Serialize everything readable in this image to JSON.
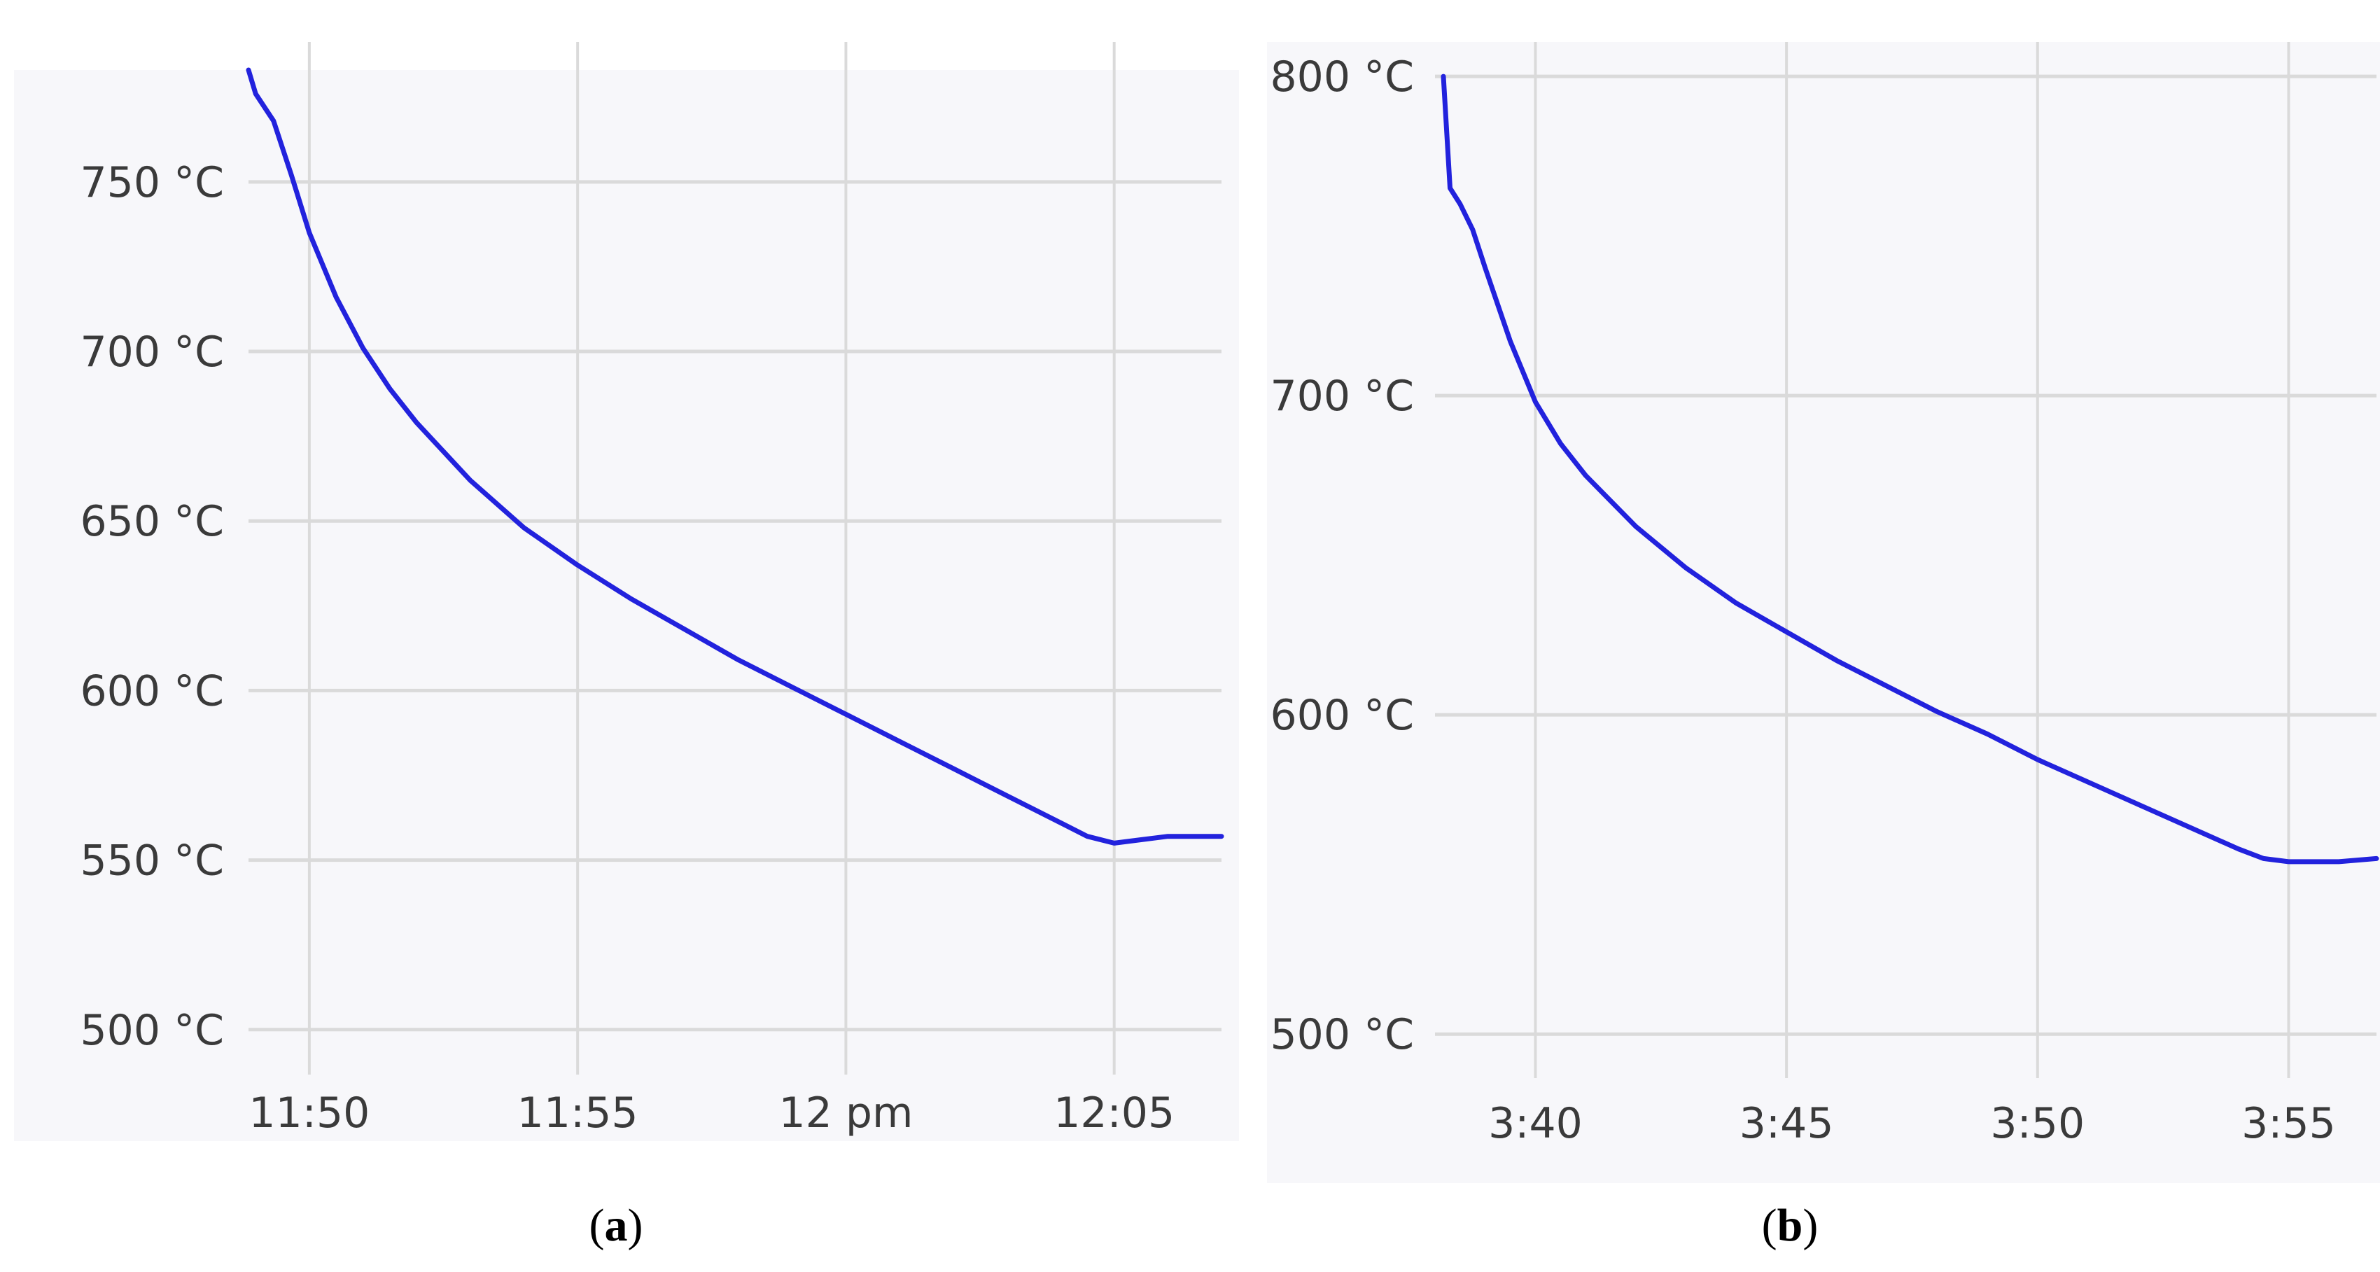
{
  "figure": {
    "captions": [
      {
        "open": "(",
        "letter": "a",
        "close": ")"
      },
      {
        "open": "(",
        "letter": "b",
        "close": ")"
      }
    ]
  },
  "chart_data": [
    {
      "type": "line",
      "title": "",
      "xlabel": "",
      "ylabel": "",
      "unit": "°C",
      "grid": true,
      "legend": "none",
      "series_color": "#2222dd",
      "xlim": [
        "11:48:52",
        "12:07:00"
      ],
      "ylim": [
        495,
        783
      ],
      "x_ticks": [
        {
          "t": "11:50",
          "label": "11:50"
        },
        {
          "t": "11:55",
          "label": "11:55"
        },
        {
          "t": "12:00",
          "label": "12 pm"
        },
        {
          "t": "12:05",
          "label": "12:05"
        }
      ],
      "y_ticks": [
        {
          "v": 500,
          "label": "500 °C"
        },
        {
          "v": 550,
          "label": "550 °C"
        },
        {
          "v": 600,
          "label": "600 °C"
        },
        {
          "v": 650,
          "label": "650 °C"
        },
        {
          "v": 700,
          "label": "700 °C"
        },
        {
          "v": 750,
          "label": "750 °C"
        }
      ],
      "series": [
        {
          "x": [
            "11:48:52",
            "11:49:00",
            "11:49:10",
            "11:49:20",
            "11:49:40",
            "11:50:00",
            "11:50:30",
            "11:51:00",
            "11:51:30",
            "11:52:00",
            "11:53:00",
            "11:54:00",
            "11:55:00",
            "11:56:00",
            "11:57:00",
            "11:58:00",
            "11:59:00",
            "12:00:00",
            "12:01:00",
            "12:02:00",
            "12:03:00",
            "12:04:00",
            "12:04:30",
            "12:05:00",
            "12:05:30",
            "12:06:00",
            "12:07:00"
          ],
          "y": [
            783,
            776,
            772,
            768,
            752,
            735,
            716,
            701,
            689,
            679,
            662,
            648,
            637,
            627,
            618,
            609,
            601,
            593,
            585,
            577,
            569,
            561,
            557,
            555,
            556,
            557,
            557
          ]
        }
      ]
    },
    {
      "type": "line",
      "title": "",
      "xlabel": "",
      "ylabel": "",
      "unit": "°C",
      "grid": true,
      "legend": "none",
      "series_color": "#2222dd",
      "xlim": [
        "3:38:00",
        "3:56:45"
      ],
      "ylim": [
        495,
        802
      ],
      "x_ticks": [
        {
          "t": "3:40",
          "label": "3:40"
        },
        {
          "t": "3:45",
          "label": "3:45"
        },
        {
          "t": "3:50",
          "label": "3:50"
        },
        {
          "t": "3:55",
          "label": "3:55"
        }
      ],
      "y_ticks": [
        {
          "v": 500,
          "label": "500 °C"
        },
        {
          "v": 600,
          "label": "600 °C"
        },
        {
          "v": 700,
          "label": "700 °C"
        },
        {
          "v": 800,
          "label": "800 °C"
        }
      ],
      "series": [
        {
          "x": [
            "3:38:10",
            "3:38:18",
            "3:38:30",
            "3:38:45",
            "3:39:00",
            "3:39:30",
            "3:40:00",
            "3:40:30",
            "3:41:00",
            "3:42:00",
            "3:43:00",
            "3:44:00",
            "3:45:00",
            "3:46:00",
            "3:47:00",
            "3:48:00",
            "3:49:00",
            "3:50:00",
            "3:51:00",
            "3:52:00",
            "3:53:00",
            "3:54:00",
            "3:54:30",
            "3:55:00",
            "3:55:30",
            "3:56:00",
            "3:56:45"
          ],
          "y": [
            800,
            765,
            760,
            752,
            740,
            717,
            698,
            685,
            675,
            659,
            646,
            635,
            626,
            617,
            609,
            601,
            594,
            586,
            579,
            572,
            565,
            558,
            555,
            554,
            554,
            554,
            555
          ]
        }
      ]
    }
  ]
}
